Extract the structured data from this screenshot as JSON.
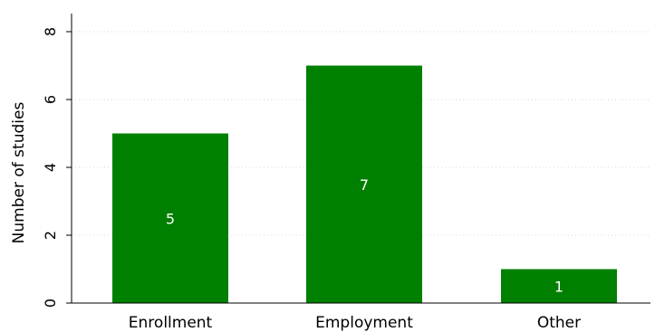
{
  "chart_data": {
    "type": "bar",
    "categories": [
      "Enrollment",
      "Employment",
      "Other"
    ],
    "values": [
      5,
      7,
      1
    ],
    "data_labels": [
      "5",
      "7",
      "1"
    ],
    "title": "",
    "xlabel": "",
    "ylabel": "Number of studies",
    "ylim": [
      0,
      8
    ],
    "yticks": [
      0,
      2,
      4,
      6,
      8
    ],
    "ytick_labels": [
      "0",
      "2",
      "4",
      "6",
      "8"
    ],
    "grid": true,
    "legend": "none",
    "colors": {
      "bar": "#008000",
      "grid": "#d9d9d9",
      "axis": "#000000",
      "data_label": "#ffffff"
    }
  }
}
